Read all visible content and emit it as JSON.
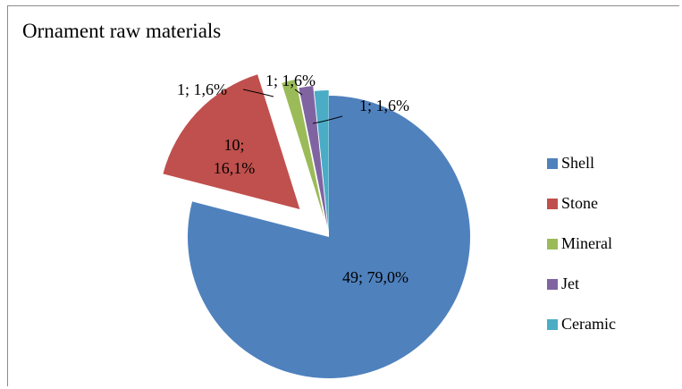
{
  "chart_data": {
    "type": "pie",
    "title": "Ornament raw materials",
    "categories": [
      "Shell",
      "Stone",
      "Mineral",
      "Jet",
      "Ceramic"
    ],
    "values": [
      49,
      10,
      1,
      1,
      1
    ],
    "data_labels": [
      "49; 79,0%",
      "10; 16,1%",
      "1; 1,6%",
      "1; 1,6%",
      "1; 1,6%"
    ],
    "colors": [
      "#4f81bd",
      "#c0504d",
      "#9bbb59",
      "#8064a2",
      "#4bacc6"
    ],
    "legend_position": "right",
    "exploded": true
  }
}
